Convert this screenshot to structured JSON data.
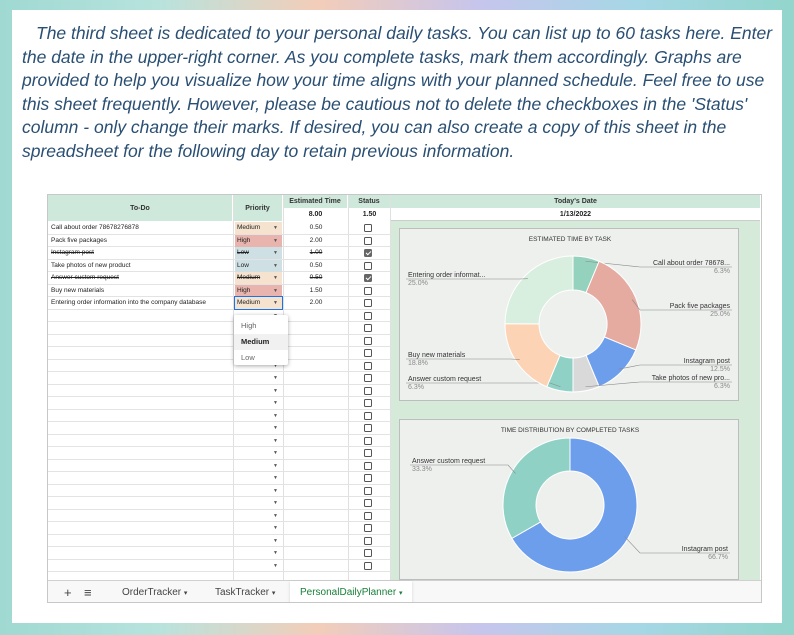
{
  "intro_text": "The third sheet is dedicated to your personal daily tasks. You can list up to 60 tasks here. Enter the date in the upper-right corner. As you complete tasks, mark them accordingly. Graphs are provided to help you visualize how your time aligns with your planned schedule. Feel free to use this sheet frequently. However, please be cautious not to delete the checkboxes in the 'Status' column - only change their marks. If desired, you can also create a copy of this sheet in the spreadsheet for the following day to retain previous information.",
  "sheet": {
    "headers": {
      "todo": "To-Do",
      "priority": "Priority",
      "est": "Estimated Time",
      "status": "Status",
      "date_header": "Today's Date"
    },
    "totals": {
      "est": "8.00",
      "status": "1.50"
    },
    "date_value": "1/13/2022",
    "tasks": [
      {
        "todo": "Call about order 78678276878",
        "priority": "Medium",
        "est": "0.50",
        "done": false
      },
      {
        "todo": "Pack five packages",
        "priority": "High",
        "est": "2.00",
        "done": false
      },
      {
        "todo": "Instagram post",
        "priority": "Low",
        "est": "1.00",
        "done": true
      },
      {
        "todo": "Take photos of new product",
        "priority": "Low",
        "est": "0.50",
        "done": false
      },
      {
        "todo": "Answer custom request",
        "priority": "Medium",
        "est": "0.50",
        "done": true
      },
      {
        "todo": "Buy new materials",
        "priority": "High",
        "est": "1.50",
        "done": false
      },
      {
        "todo": "Entering order information into the company database",
        "priority": "Medium",
        "est": "2.00",
        "done": false
      }
    ],
    "dropdown_options": [
      "High",
      "Medium",
      "Low"
    ],
    "dropdown_selected": "Medium",
    "priority_colors": {
      "Medium": "#f6e3cf",
      "High": "#e8b4ad",
      "Low": "#cfe0e4"
    }
  },
  "chart_data": [
    {
      "type": "pie",
      "title": "ESTIMATED TIME BY TASK",
      "categories": [
        "Call about order 78678...",
        "Pack five packages",
        "Instagram post",
        "Take photos of new pro...",
        "Answer custom request",
        "Buy new materials",
        "Entering order informat..."
      ],
      "values": [
        6.3,
        25.0,
        12.5,
        6.3,
        6.3,
        18.8,
        25.0
      ],
      "labels": [
        "6.3%",
        "25.0%",
        "12.5%",
        "6.3%",
        "6.3%",
        "18.8%",
        "25.0%"
      ],
      "colors": [
        "#94d2bd",
        "#e5aaa0",
        "#6d9eeb",
        "#d9d9d9",
        "#8fd1c5",
        "#fcd3b5",
        "#d8eedf"
      ]
    },
    {
      "type": "pie",
      "title": "TIME DISTRIBUTION BY COMPLETED TASKS",
      "categories": [
        "Instagram post",
        "Answer custom request"
      ],
      "values": [
        66.7,
        33.3
      ],
      "labels": [
        "66.7%",
        "33.3%"
      ],
      "colors": [
        "#6d9eeb",
        "#8fd1c5"
      ]
    }
  ],
  "tabs": {
    "add_icon": "+",
    "list_icon": "≡",
    "items": [
      "OrderTracker",
      "TaskTracker",
      "PersonalDailyPlanner"
    ],
    "active": 2
  }
}
